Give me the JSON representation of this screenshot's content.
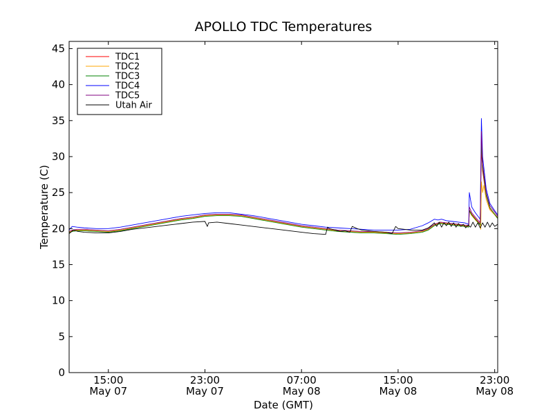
{
  "chart_data": {
    "type": "line",
    "title": "APOLLO TDC Temperatures",
    "xlabel": "Date (GMT)",
    "ylabel": "Temperature (C)",
    "ylim": [
      0,
      46
    ],
    "xlim_hours": [
      11.75,
      47.25
    ],
    "x_unit": "hours since May 07 00:00 GMT",
    "y_ticks": [
      0,
      5,
      10,
      15,
      20,
      25,
      30,
      35,
      40,
      45
    ],
    "x_ticks": [
      {
        "x": 15,
        "time": "15:00",
        "date": "May 07"
      },
      {
        "x": 23,
        "time": "23:00",
        "date": "May 07"
      },
      {
        "x": 31,
        "time": "07:00",
        "date": "May 08"
      },
      {
        "x": 39,
        "time": "15:00",
        "date": "May 08"
      },
      {
        "x": 47,
        "time": "23:00",
        "date": "May 08"
      }
    ],
    "grid": false,
    "legend_position": "top-left",
    "series": [
      {
        "name": "TDC1",
        "color": "#ff0000",
        "x": [
          11.75,
          12.0,
          12.4,
          13.0,
          14.0,
          15.0,
          16.0,
          17.0,
          18.0,
          19.0,
          20.0,
          21.0,
          22.0,
          23.0,
          24.0,
          25.0,
          26.0,
          27.0,
          28.0,
          29.0,
          30.0,
          31.0,
          32.0,
          33.0,
          34.0,
          35.0,
          36.0,
          37.0,
          38.0,
          39.0,
          40.0,
          41.0,
          41.5,
          42.0,
          42.5,
          43.0,
          43.5,
          44.0,
          44.5,
          44.85,
          44.9,
          45.1,
          45.4,
          45.8,
          45.9,
          46.0,
          46.3,
          46.6,
          47.0,
          47.25
        ],
        "y": [
          19.5,
          19.7,
          19.8,
          19.8,
          19.7,
          19.6,
          19.8,
          20.1,
          20.4,
          20.7,
          21.0,
          21.3,
          21.5,
          21.8,
          21.9,
          21.9,
          21.8,
          21.5,
          21.2,
          20.9,
          20.6,
          20.3,
          20.1,
          19.9,
          19.7,
          19.6,
          19.5,
          19.5,
          19.4,
          19.3,
          19.4,
          19.6,
          19.9,
          20.5,
          20.8,
          20.7,
          20.6,
          20.5,
          20.4,
          20.3,
          22.6,
          22.0,
          21.4,
          20.6,
          31.0,
          28.0,
          24.5,
          22.8,
          22.0,
          21.5
        ]
      },
      {
        "name": "TDC2",
        "color": "#ffa500",
        "x": [
          11.75,
          12.0,
          12.4,
          13.0,
          14.0,
          15.0,
          16.0,
          17.0,
          18.0,
          19.0,
          20.0,
          21.0,
          22.0,
          23.0,
          24.0,
          25.0,
          26.0,
          27.0,
          28.0,
          29.0,
          30.0,
          31.0,
          32.0,
          33.0,
          34.0,
          35.0,
          36.0,
          37.0,
          38.0,
          39.0,
          40.0,
          41.0,
          41.5,
          42.0,
          42.5,
          43.0,
          43.5,
          44.0,
          44.5,
          44.85,
          44.9,
          45.1,
          45.4,
          45.8,
          45.85,
          45.9,
          46.0,
          46.1,
          46.3,
          46.6,
          47.0,
          47.25
        ],
        "y": [
          19.5,
          19.7,
          19.8,
          19.8,
          19.7,
          19.6,
          19.8,
          20.1,
          20.4,
          20.7,
          21.0,
          21.3,
          21.5,
          21.8,
          21.9,
          21.9,
          21.8,
          21.5,
          21.2,
          20.9,
          20.6,
          20.3,
          20.1,
          19.9,
          19.7,
          19.6,
          19.5,
          19.5,
          19.4,
          19.3,
          19.4,
          19.6,
          19.9,
          20.5,
          20.8,
          20.7,
          20.6,
          20.5,
          20.4,
          20.3,
          22.4,
          21.8,
          21.2,
          20.5,
          19.9,
          26.5,
          25.0,
          26.0,
          24.0,
          22.6,
          21.9,
          21.4
        ]
      },
      {
        "name": "TDC3",
        "color": "#008000",
        "x": [
          11.75,
          12.0,
          12.4,
          13.0,
          14.0,
          15.0,
          16.0,
          17.0,
          18.0,
          19.0,
          20.0,
          21.0,
          22.0,
          23.0,
          24.0,
          25.0,
          26.0,
          27.0,
          28.0,
          29.0,
          30.0,
          31.0,
          32.0,
          33.0,
          34.0,
          35.0,
          36.0,
          37.0,
          38.0,
          39.0,
          40.0,
          41.0,
          41.5,
          42.0,
          42.5,
          43.0,
          43.5,
          44.0,
          44.5,
          44.85,
          44.9,
          45.1,
          45.4,
          45.8,
          45.9,
          46.0,
          46.3,
          46.6,
          47.0,
          47.25
        ],
        "y": [
          19.4,
          19.6,
          19.7,
          19.7,
          19.6,
          19.5,
          19.7,
          20.0,
          20.3,
          20.6,
          20.9,
          21.2,
          21.4,
          21.7,
          21.8,
          21.8,
          21.7,
          21.4,
          21.1,
          20.8,
          20.5,
          20.2,
          20.0,
          19.8,
          19.6,
          19.5,
          19.4,
          19.4,
          19.3,
          19.2,
          19.3,
          19.5,
          19.8,
          20.4,
          20.7,
          20.6,
          20.5,
          20.4,
          20.3,
          20.2,
          22.5,
          21.9,
          21.3,
          20.5,
          32.0,
          28.5,
          24.6,
          22.9,
          22.0,
          21.4
        ]
      },
      {
        "name": "TDC4",
        "color": "#0000ff",
        "x": [
          11.75,
          12.0,
          12.4,
          13.0,
          14.0,
          15.0,
          16.0,
          17.0,
          18.0,
          19.0,
          20.0,
          21.0,
          22.0,
          23.0,
          24.0,
          25.0,
          26.0,
          27.0,
          28.0,
          29.0,
          30.0,
          31.0,
          32.0,
          33.0,
          34.0,
          35.0,
          36.0,
          37.0,
          38.0,
          39.0,
          40.0,
          41.0,
          41.5,
          42.0,
          42.3,
          42.6,
          43.0,
          43.5,
          44.0,
          44.5,
          44.85,
          44.9,
          45.1,
          45.4,
          45.8,
          45.9,
          46.0,
          46.3,
          46.6,
          47.0,
          47.25
        ],
        "y": [
          19.8,
          20.3,
          20.2,
          20.1,
          20.0,
          20.0,
          20.2,
          20.5,
          20.8,
          21.1,
          21.4,
          21.7,
          21.9,
          22.1,
          22.2,
          22.2,
          22.0,
          21.8,
          21.5,
          21.2,
          20.9,
          20.6,
          20.4,
          20.2,
          20.1,
          20.0,
          19.9,
          19.8,
          19.8,
          19.8,
          19.9,
          20.4,
          20.8,
          21.3,
          21.2,
          21.3,
          21.1,
          21.0,
          20.9,
          20.8,
          20.6,
          25.0,
          23.0,
          22.2,
          21.3,
          35.3,
          30.0,
          25.5,
          23.5,
          22.5,
          21.9
        ]
      },
      {
        "name": "TDC5",
        "color": "#800080",
        "x": [
          11.75,
          12.0,
          12.4,
          13.0,
          14.0,
          15.0,
          16.0,
          17.0,
          18.0,
          19.0,
          20.0,
          21.0,
          22.0,
          23.0,
          24.0,
          25.0,
          26.0,
          27.0,
          28.0,
          29.0,
          30.0,
          31.0,
          32.0,
          33.0,
          34.0,
          35.0,
          36.0,
          37.0,
          38.0,
          39.0,
          40.0,
          41.0,
          41.5,
          42.0,
          42.5,
          43.0,
          43.5,
          44.0,
          44.5,
          44.85,
          44.9,
          45.1,
          45.4,
          45.8,
          45.9,
          46.0,
          46.3,
          46.6,
          47.0,
          47.25
        ],
        "y": [
          19.6,
          19.8,
          19.9,
          19.9,
          19.8,
          19.7,
          19.9,
          20.2,
          20.5,
          20.8,
          21.1,
          21.4,
          21.6,
          21.9,
          22.0,
          22.0,
          21.9,
          21.6,
          21.3,
          21.0,
          20.7,
          20.4,
          20.2,
          20.0,
          19.8,
          19.7,
          19.6,
          19.6,
          19.5,
          19.4,
          19.5,
          19.7,
          20.0,
          20.6,
          20.9,
          20.8,
          20.7,
          20.6,
          20.5,
          20.4,
          23.0,
          22.2,
          21.6,
          20.8,
          33.5,
          29.0,
          25.0,
          23.2,
          22.3,
          21.7
        ]
      },
      {
        "name": "Utah Air",
        "color": "#000000",
        "x": [
          11.75,
          12.1,
          12.5,
          13.0,
          14.0,
          15.0,
          16.0,
          17.0,
          18.0,
          19.0,
          20.0,
          21.0,
          22.0,
          23.0,
          23.2,
          23.3,
          24.0,
          25.0,
          26.0,
          27.0,
          28.0,
          29.0,
          30.0,
          31.0,
          32.0,
          33.0,
          33.15,
          33.3,
          33.8,
          34.2,
          34.6,
          35.0,
          35.2,
          35.6,
          36.0,
          37.0,
          38.0,
          38.5,
          38.8,
          39.0,
          39.5,
          40.0,
          41.0,
          41.5,
          41.8,
          42.0,
          42.2,
          42.4,
          42.6,
          42.8,
          43.0,
          43.2,
          43.4,
          43.6,
          43.8,
          44.0,
          44.2,
          44.4,
          44.6,
          44.8,
          45.0,
          45.2,
          45.4,
          45.6,
          45.8,
          46.0,
          46.2,
          46.4,
          46.6,
          46.8,
          47.0,
          47.25
        ],
        "y": [
          19.3,
          19.8,
          19.6,
          19.5,
          19.4,
          19.4,
          19.6,
          19.9,
          20.1,
          20.3,
          20.5,
          20.7,
          20.9,
          21.0,
          20.3,
          20.8,
          20.9,
          20.7,
          20.5,
          20.3,
          20.1,
          19.9,
          19.7,
          19.5,
          19.3,
          19.2,
          20.2,
          20.0,
          19.8,
          19.6,
          19.7,
          19.5,
          20.3,
          20.0,
          19.8,
          19.6,
          19.5,
          19.3,
          20.3,
          20.0,
          19.9,
          19.8,
          19.8,
          20.1,
          20.5,
          20.8,
          20.3,
          20.9,
          20.2,
          20.8,
          20.4,
          20.9,
          20.3,
          20.8,
          20.2,
          20.7,
          20.3,
          20.6,
          20.1,
          20.5,
          20.2,
          20.9,
          20.2,
          20.8,
          20.1,
          20.8,
          20.2,
          20.9,
          20.2,
          20.8,
          20.3,
          20.6
        ]
      }
    ]
  }
}
